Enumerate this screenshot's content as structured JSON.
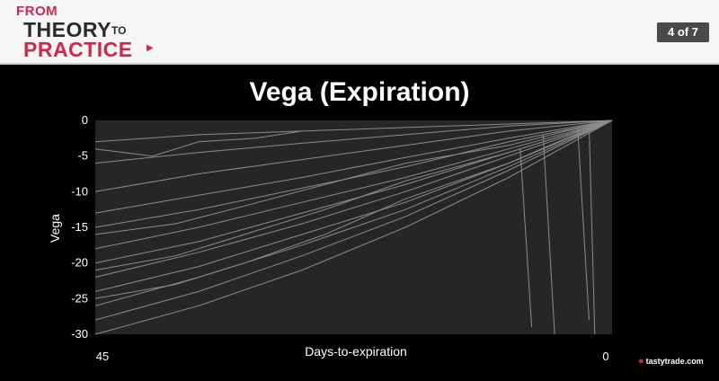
{
  "header": {
    "logo": {
      "line1": "FROM",
      "line2": "THEORY",
      "line2_small": "TO",
      "line3": "PRACTICE"
    },
    "pager": "4 of 7"
  },
  "colors": {
    "brand_red": "#d6254a",
    "plot_bg": "#262626",
    "series_color": "#8c8c8c"
  },
  "brand": {
    "name": "tastytrade",
    "suffix": ".com",
    "icon": "cherry-icon"
  },
  "chart_data": {
    "type": "line",
    "title": "Vega (Expiration)",
    "xlabel": "Days-to-expiration",
    "ylabel": "Vega",
    "xlim": [
      45,
      0
    ],
    "ylim": [
      -30,
      0
    ],
    "x_ticks": [
      "45",
      "0"
    ],
    "y_ticks": [
      0,
      -5,
      -10,
      -15,
      -20,
      -25,
      -30
    ],
    "grid": false,
    "legend": "none",
    "series": [
      {
        "x": [
          45,
          36,
          27,
          18,
          9,
          0
        ],
        "values": [
          -3,
          -2,
          -1.5,
          -1,
          -0.5,
          0
        ]
      },
      {
        "x": [
          45,
          36,
          27,
          18,
          9,
          0
        ],
        "values": [
          -6,
          -4.5,
          -3.2,
          -2,
          -0.8,
          0
        ]
      },
      {
        "x": [
          45,
          36,
          27,
          18,
          9,
          0
        ],
        "values": [
          -10,
          -7.5,
          -5.5,
          -3.5,
          -1.5,
          0
        ]
      },
      {
        "x": [
          45,
          36,
          27,
          18,
          9,
          0
        ],
        "values": [
          -13,
          -10.5,
          -8,
          -5.2,
          -2.5,
          0
        ]
      },
      {
        "x": [
          45,
          36,
          27,
          18,
          9,
          0
        ],
        "values": [
          -15,
          -12.5,
          -9.5,
          -6.5,
          -3,
          0
        ]
      },
      {
        "x": [
          45,
          36,
          27,
          18,
          9,
          0
        ],
        "values": [
          -18,
          -15,
          -11.5,
          -8,
          -4,
          0
        ]
      },
      {
        "x": [
          45,
          36,
          27,
          18,
          9,
          0
        ],
        "values": [
          -20,
          -17,
          -13,
          -9,
          -4.5,
          0
        ]
      },
      {
        "x": [
          45,
          36,
          27,
          18,
          9,
          0
        ],
        "values": [
          -22,
          -18.5,
          -14.5,
          -10,
          -5,
          0
        ]
      },
      {
        "x": [
          45,
          36,
          27,
          18,
          9,
          0
        ],
        "values": [
          -24,
          -20.5,
          -16,
          -11.5,
          -6,
          0
        ]
      },
      {
        "x": [
          45,
          36,
          27,
          18,
          9,
          0
        ],
        "values": [
          -26,
          -22,
          -17.5,
          -12.5,
          -6.5,
          0
        ]
      },
      {
        "x": [
          45,
          36,
          27,
          18,
          9,
          0
        ],
        "values": [
          -28,
          -24,
          -19,
          -13.5,
          -7,
          0
        ]
      },
      {
        "x": [
          45,
          36,
          27,
          18,
          9,
          0
        ],
        "values": [
          -30,
          -26,
          -21,
          -15,
          -8,
          0
        ]
      },
      {
        "x": [
          45,
          40,
          36,
          31,
          27
        ],
        "values": [
          -4,
          -5,
          -3,
          -2.5,
          -1.5
        ]
      },
      {
        "x": [
          45,
          38,
          32,
          25,
          18,
          9,
          4,
          0
        ],
        "values": [
          -16,
          -14.5,
          -12,
          -9,
          -6,
          -3.5,
          -1.5,
          0
        ]
      },
      {
        "x": [
          45,
          38,
          32,
          25,
          18,
          9,
          4,
          0
        ],
        "values": [
          -21,
          -19,
          -16,
          -12.5,
          -8.5,
          -4.5,
          -2,
          0
        ]
      },
      {
        "x": [
          45,
          38,
          32,
          25,
          18,
          9,
          4,
          0
        ],
        "values": [
          -25,
          -23,
          -20,
          -16,
          -11,
          -6,
          -2.5,
          0
        ]
      },
      {
        "x": [
          8,
          7
        ],
        "values": [
          -4,
          -29
        ]
      },
      {
        "x": [
          6,
          5
        ],
        "values": [
          -2,
          -30
        ]
      },
      {
        "x": [
          3,
          2
        ],
        "values": [
          -1,
          -28
        ]
      },
      {
        "x": [
          2,
          1.5
        ],
        "values": [
          -0.5,
          -30
        ]
      }
    ]
  }
}
